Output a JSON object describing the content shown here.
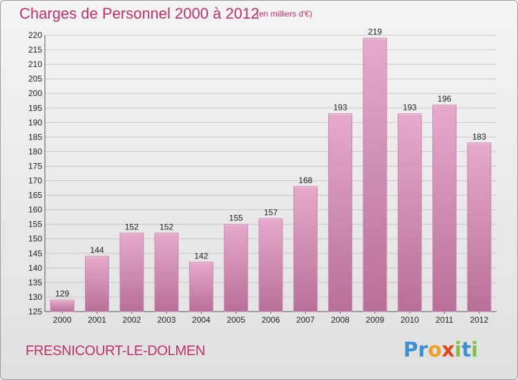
{
  "header": {
    "title": "Charges de Personnel 2000 à 2012",
    "unit_note": "(en milliers d'€)"
  },
  "footer": {
    "place": "FRESNICOURT-LE-DOLMEN",
    "logo_letters": [
      "P",
      "r",
      "o",
      "x",
      "i",
      "t",
      "i"
    ],
    "logo_colors": [
      "#3a8fd6",
      "#3a8fd6",
      "#f0a21e",
      "#e0451f",
      "#7cc242",
      "#3a8fd6",
      "#7cc242"
    ]
  },
  "colors": {
    "bar": "#e0a2c4",
    "bar_dark": "#c36b9b",
    "title": "#c0306a"
  },
  "chart_data": {
    "type": "bar",
    "title": "Charges de Personnel 2000 à 2012",
    "subtitle": "(en milliers d'€)",
    "categories": [
      "2000",
      "2001",
      "2002",
      "2003",
      "2004",
      "2005",
      "2006",
      "2007",
      "2008",
      "2009",
      "2010",
      "2011",
      "2012"
    ],
    "values": [
      129,
      144,
      152,
      152,
      142,
      155,
      157,
      168,
      193,
      219,
      193,
      196,
      183
    ],
    "ylim": [
      125,
      220
    ],
    "yticks": [
      125,
      130,
      135,
      140,
      145,
      150,
      155,
      160,
      165,
      170,
      175,
      180,
      185,
      190,
      195,
      200,
      205,
      210,
      215,
      220
    ],
    "grid": true,
    "legend": "none"
  }
}
